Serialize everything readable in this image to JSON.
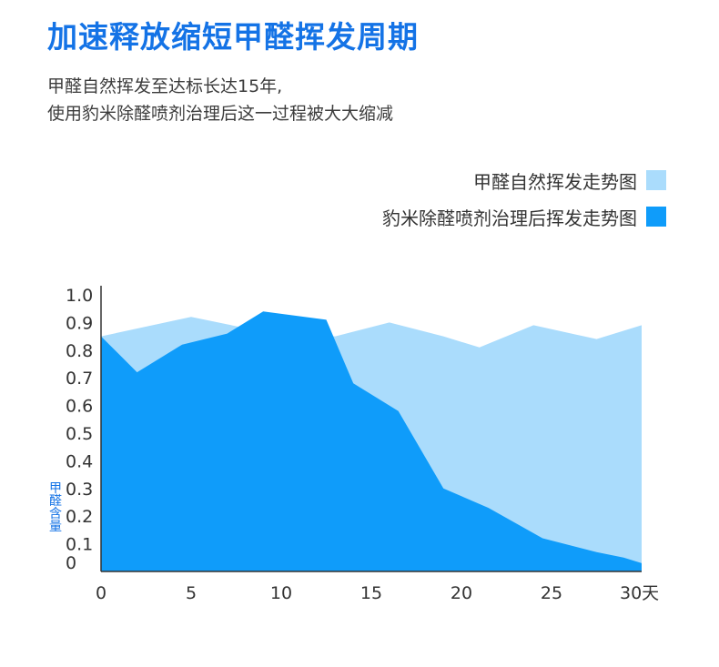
{
  "header": {
    "title": "加速释放缩短甲醛挥发周期",
    "subtitle_line1": "甲醛自然挥发至达标长达15年,",
    "subtitle_line2": "使用豹米除醛喷剂治理后这一过程被大大缩减"
  },
  "colors": {
    "series_natural": "#aadcfc",
    "series_treated": "#0f9cfa",
    "title": "#1473e6",
    "axis": "#333333"
  },
  "chart_data": {
    "type": "area",
    "title": "",
    "xlabel": "",
    "ylabel": "甲醛含量",
    "xlim": [
      0,
      30
    ],
    "ylim": [
      0,
      1.0
    ],
    "x_ticks": [
      0,
      5,
      10,
      15,
      20,
      25,
      30
    ],
    "x_tick_labels": [
      "0",
      "5",
      "10",
      "15",
      "20",
      "25",
      "30天"
    ],
    "y_ticks": [
      0,
      0.1,
      0.2,
      0.3,
      0.4,
      0.5,
      0.6,
      0.7,
      0.8,
      0.9,
      1.0
    ],
    "y_tick_labels": [
      "0",
      "0.1",
      "0.2",
      "0.3",
      "0.4",
      "0.5",
      "0.6",
      "0.7",
      "0.8",
      "0.9",
      "1.0"
    ],
    "legend_position": "top-right",
    "grid": false,
    "series": [
      {
        "name": "甲醛自然挥发走势图",
        "x": [
          0,
          5,
          8,
          13,
          16,
          19,
          21,
          24,
          27.5,
          30
        ],
        "values": [
          0.85,
          0.92,
          0.88,
          0.85,
          0.9,
          0.85,
          0.81,
          0.89,
          0.84,
          0.89
        ]
      },
      {
        "name": "豹米除醛喷剂治理后挥发走势图",
        "x": [
          0,
          2,
          4.5,
          7,
          9,
          12.5,
          14,
          16.5,
          19,
          21.5,
          24.5,
          27.5,
          29,
          30
        ],
        "values": [
          0.85,
          0.72,
          0.82,
          0.86,
          0.94,
          0.91,
          0.68,
          0.58,
          0.3,
          0.23,
          0.12,
          0.07,
          0.05,
          0.03
        ]
      }
    ]
  }
}
